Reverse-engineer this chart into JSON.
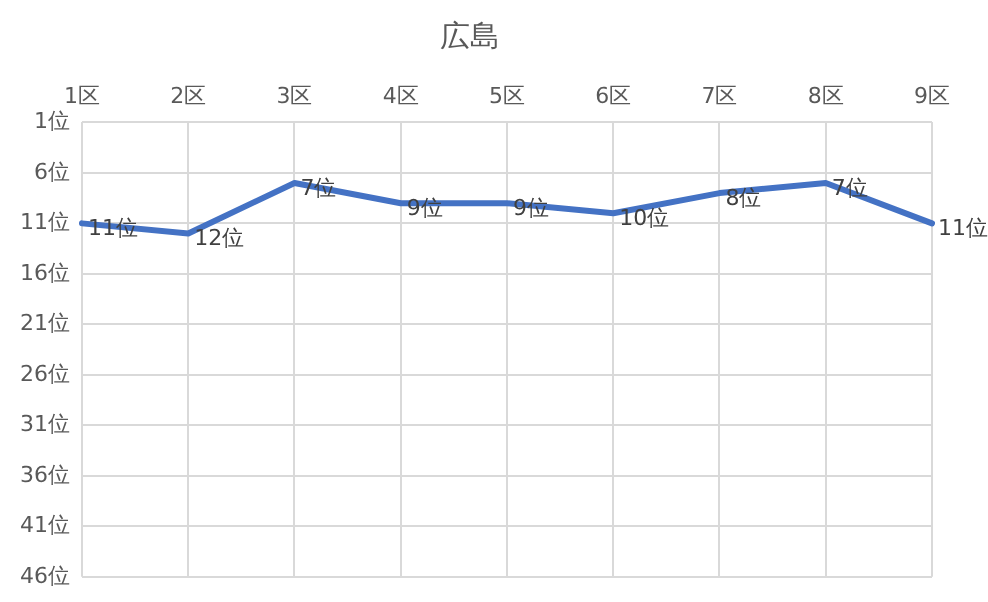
{
  "chart_data": {
    "type": "line",
    "title": "広島",
    "categories": [
      "1区",
      "2区",
      "3区",
      "4区",
      "5区",
      "6区",
      "7区",
      "8区",
      "9区"
    ],
    "series": [
      {
        "color": "#4472c4",
        "values": [
          11,
          12,
          7,
          9,
          9,
          10,
          8,
          7,
          11
        ],
        "value_labels": [
          "11位",
          "12位",
          "7位",
          "9位",
          "9位",
          "10位",
          "8位",
          "7位",
          "11位"
        ]
      }
    ],
    "ylim": [
      46,
      1
    ],
    "yticks": [
      {
        "value": 1,
        "label": "1位"
      },
      {
        "value": 6,
        "label": "6位"
      },
      {
        "value": 11,
        "label": "11位"
      },
      {
        "value": 16,
        "label": "16位"
      },
      {
        "value": 21,
        "label": "21位"
      },
      {
        "value": 26,
        "label": "26位"
      },
      {
        "value": 31,
        "label": "31位"
      },
      {
        "value": 36,
        "label": "36位"
      },
      {
        "value": 41,
        "label": "41位"
      },
      {
        "value": 46,
        "label": "46位"
      }
    ],
    "grid": true,
    "legend": false,
    "marker": "none",
    "line_style": "solid"
  }
}
